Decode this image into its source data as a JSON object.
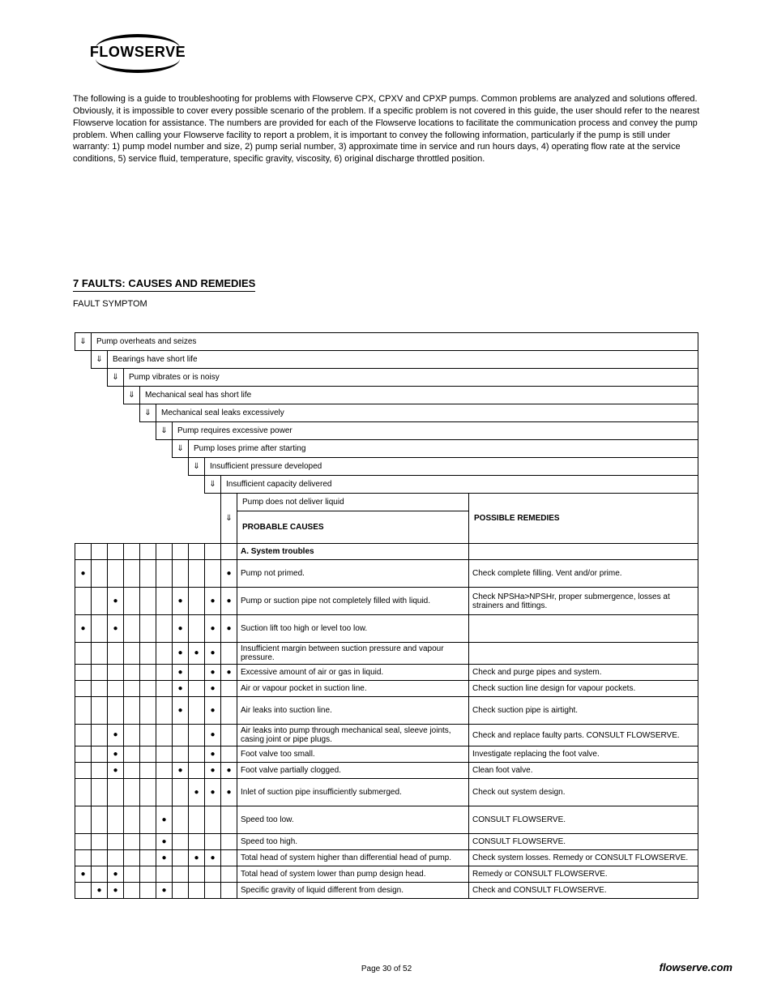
{
  "logo_text": "FLOWSERVE",
  "intro_paragraph": "The following is a guide to troubleshooting for problems with Flowserve CPX, CPXV and CPXP pumps. Common problems are analyzed and solutions offered. Obviously, it is impossible to cover every possible scenario of the problem. If a specific problem is not covered in this guide, the user should refer to the nearest Flowserve location for assistance. The numbers are provided for each of the Flowserve locations to facilitate the communication process and convey the pump problem. When calling your Flowserve facility to report a problem, it is important to convey the following information, particularly if the pump is still under warranty: 1) pump model number and size, 2) pump serial number, 3) approximate time in service and run hours days, 4) operating flow rate at the service conditions, 5) service fluid, temperature, specific gravity, viscosity, 6) original discharge throttled position.",
  "section_title": "7 FAULTS: CAUSES AND REMEDIES",
  "section_sub": "FAULT SYMPTOM",
  "headers": [
    "Pump overheats and seizes",
    "Bearings have short life",
    "Pump vibrates or is noisy",
    "Mechanical seal has short life",
    "Mechanical seal leaks excessively",
    "Pump requires excessive power",
    "Pump loses prime after starting",
    "Insufficient pressure developed",
    "Insufficient capacity delivered",
    "Pump does not deliver liquid"
  ],
  "header_cols": {
    "probable": "PROBABLE CAUSES",
    "remedy": "POSSIBLE REMEDIES"
  },
  "section_A_title": "A. System troubles",
  "rows": [
    {
      "h": "tall",
      "dots": [
        1,
        0,
        0,
        0,
        0,
        0,
        0,
        0,
        0,
        1
      ],
      "cause": "Pump not primed.",
      "remedy": "Check complete filling. Vent and/or prime."
    },
    {
      "h": "tall",
      "dots": [
        0,
        0,
        1,
        0,
        0,
        0,
        1,
        0,
        1,
        1
      ],
      "cause": "Pump or suction pipe not completely filled with liquid.",
      "remedy": "Check NPSHa>NPSHr, proper submergence, losses at strainers and fittings."
    },
    {
      "h": "tall",
      "dots": [
        1,
        0,
        1,
        0,
        0,
        0,
        1,
        0,
        1,
        1
      ],
      "cause": "Suction lift too high or level too low.",
      "remedy": ""
    },
    {
      "h": "",
      "dots": [
        0,
        0,
        0,
        0,
        0,
        0,
        1,
        1,
        1,
        0
      ],
      "cause": "Insufficient margin between suction pressure and vapour pressure.",
      "remedy": ""
    },
    {
      "h": "",
      "dots": [
        0,
        0,
        0,
        0,
        0,
        0,
        1,
        0,
        1,
        1
      ],
      "cause": "Excessive amount of air or gas in liquid.",
      "remedy": "Check and purge pipes and system."
    },
    {
      "h": "",
      "dots": [
        0,
        0,
        0,
        0,
        0,
        0,
        1,
        0,
        1,
        0
      ],
      "cause": "Air or vapour pocket in suction line.",
      "remedy": "Check suction line design for vapour pockets."
    },
    {
      "h": "tall",
      "dots": [
        0,
        0,
        0,
        0,
        0,
        0,
        1,
        0,
        1,
        0
      ],
      "cause": "Air leaks into suction line.",
      "remedy": "Check suction pipe is airtight."
    },
    {
      "h": "",
      "dots": [
        0,
        0,
        1,
        0,
        0,
        0,
        0,
        0,
        1,
        0
      ],
      "cause": "Air leaks into pump through mechanical seal, sleeve joints, casing joint or pipe plugs.",
      "remedy": "Check and replace faulty parts. CONSULT FLOWSERVE."
    },
    {
      "h": "",
      "dots": [
        0,
        0,
        1,
        0,
        0,
        0,
        0,
        0,
        1,
        0
      ],
      "cause": "Foot valve too small.",
      "remedy": "Investigate replacing the foot valve."
    },
    {
      "h": "",
      "dots": [
        0,
        0,
        1,
        0,
        0,
        0,
        1,
        0,
        1,
        1
      ],
      "cause": "Foot valve partially clogged.",
      "remedy": "Clean foot valve."
    },
    {
      "h": "tall",
      "dots": [
        0,
        0,
        0,
        0,
        0,
        0,
        0,
        1,
        1,
        1
      ],
      "cause": "Inlet of suction pipe insufficiently submerged.",
      "remedy": "Check out system design."
    },
    {
      "h": "tall",
      "dots": [
        0,
        0,
        0,
        0,
        0,
        1,
        0,
        0,
        0,
        0
      ],
      "cause": "Speed too low.",
      "remedy": "CONSULT FLOWSERVE."
    },
    {
      "h": "",
      "dots": [
        0,
        0,
        0,
        0,
        0,
        1,
        0,
        0,
        0,
        0
      ],
      "cause": "Speed too high.",
      "remedy": "CONSULT FLOWSERVE."
    },
    {
      "h": "",
      "dots": [
        0,
        0,
        0,
        0,
        0,
        1,
        0,
        1,
        1,
        0
      ],
      "cause": "Total head of system higher than differential head of pump.",
      "remedy": "Check system losses. Remedy or CONSULT FLOWSERVE."
    },
    {
      "h": "",
      "dots": [
        1,
        0,
        1,
        0,
        0,
        0,
        0,
        0,
        0,
        0
      ],
      "cause": "Total head of system lower than pump design head.",
      "remedy": "Remedy or CONSULT FLOWSERVE."
    },
    {
      "h": "",
      "dots": [
        0,
        1,
        1,
        0,
        0,
        1,
        0,
        0,
        0,
        0
      ],
      "cause": "Specific gravity of liquid different from design.",
      "remedy": "Check and CONSULT FLOWSERVE."
    }
  ],
  "page_number": "Page 30 of 52",
  "footer": "flowserve.com"
}
